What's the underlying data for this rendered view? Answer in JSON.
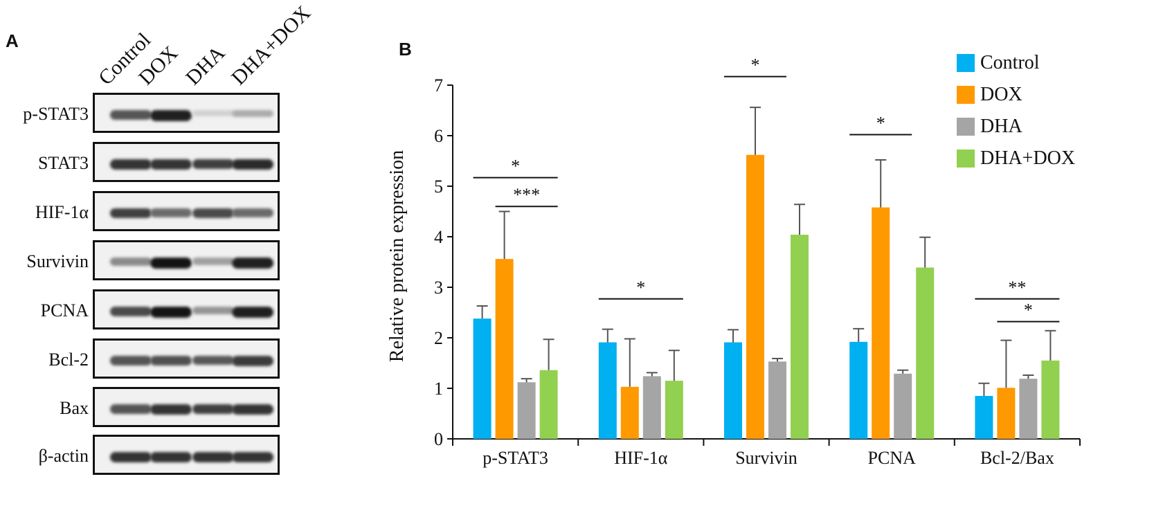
{
  "panel_a": {
    "label": "A",
    "lanes": [
      "Control",
      "DOX",
      "DHA",
      "DHA+DOX"
    ],
    "blots": [
      {
        "label": "p-STAT3",
        "intensity": [
          0.7,
          0.95,
          0.12,
          0.3
        ]
      },
      {
        "label": "STAT3",
        "intensity": [
          0.85,
          0.85,
          0.8,
          0.9
        ]
      },
      {
        "label": "HIF-1α",
        "intensity": [
          0.8,
          0.6,
          0.75,
          0.6
        ]
      },
      {
        "label": "Survivin",
        "intensity": [
          0.45,
          1.0,
          0.35,
          0.95
        ]
      },
      {
        "label": "PCNA",
        "intensity": [
          0.75,
          1.0,
          0.4,
          0.95
        ]
      },
      {
        "label": "Bcl-2",
        "intensity": [
          0.7,
          0.72,
          0.68,
          0.82
        ]
      },
      {
        "label": "Bax",
        "intensity": [
          0.7,
          0.85,
          0.8,
          0.85
        ]
      },
      {
        "label": "β-actin",
        "intensity": [
          0.85,
          0.85,
          0.85,
          0.85
        ]
      }
    ]
  },
  "panel_b": {
    "label": "B"
  },
  "chart_data": {
    "type": "bar",
    "ylabel": "Relative protein expression",
    "ylim": [
      0,
      7
    ],
    "yticks": [
      "0",
      "1",
      "2",
      "3",
      "4",
      "5",
      "6",
      "7"
    ],
    "categories": [
      "p-STAT3",
      "HIF-1α",
      "Survivin",
      "PCNA",
      "Bcl-2/Bax"
    ],
    "series": [
      {
        "name": "Control",
        "color": "#00b0f0",
        "values": [
          2.38,
          1.91,
          1.91,
          1.92,
          0.85
        ],
        "errors": [
          0.25,
          0.26,
          0.25,
          0.26,
          0.25
        ]
      },
      {
        "name": "DOX",
        "color": "#ff9900",
        "values": [
          3.56,
          1.03,
          5.62,
          4.58,
          1.01
        ],
        "errors": [
          0.94,
          0.95,
          0.94,
          0.94,
          0.94
        ]
      },
      {
        "name": "DHA",
        "color": "#a5a5a5",
        "values": [
          1.12,
          1.24,
          1.53,
          1.29,
          1.19
        ],
        "errors": [
          0.07,
          0.07,
          0.06,
          0.07,
          0.07
        ]
      },
      {
        "name": "DHA+DOX",
        "color": "#92d050",
        "values": [
          1.36,
          1.15,
          4.04,
          3.39,
          1.55
        ],
        "errors": [
          0.61,
          0.6,
          0.6,
          0.6,
          0.59
        ]
      }
    ],
    "legend_position": "top-right",
    "significance": [
      {
        "category": 0,
        "from": 0,
        "to": 3,
        "y": 5.17,
        "label": "*"
      },
      {
        "category": 0,
        "from": 1,
        "to": 3,
        "y": 4.6,
        "label": "***"
      },
      {
        "category": 1,
        "from": 0,
        "to": 3,
        "y": 2.77,
        "label": "*"
      },
      {
        "category": 2,
        "from": 0,
        "to": 2,
        "y": 7.17,
        "label": "*"
      },
      {
        "category": 3,
        "from": 0,
        "to": 2,
        "y": 6.02,
        "label": "*"
      },
      {
        "category": 4,
        "from": 0,
        "to": 3,
        "y": 2.77,
        "label": "**"
      },
      {
        "category": 4,
        "from": 1,
        "to": 3,
        "y": 2.32,
        "label": "*"
      }
    ]
  }
}
